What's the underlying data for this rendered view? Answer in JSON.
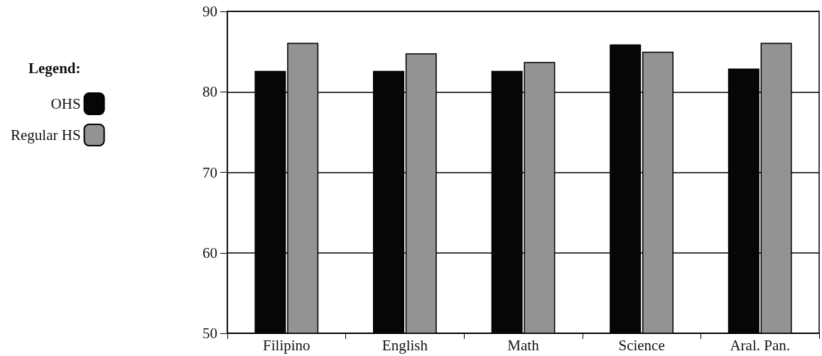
{
  "chart_data": {
    "type": "bar",
    "legend_title": "Legend:",
    "categories": [
      "Filipino",
      "English",
      "Math",
      "Science",
      "Aral. Pan."
    ],
    "series": [
      {
        "name": "OHS",
        "color": "#060606",
        "values": [
          82.6,
          82.6,
          82.6,
          85.9,
          82.9
        ]
      },
      {
        "name": "Regular HS",
        "color": "#939393",
        "values": [
          86.1,
          84.8,
          83.7,
          85.0,
          86.1
        ]
      }
    ],
    "ylim": [
      50,
      90
    ],
    "yticks": [
      50,
      60,
      70,
      80,
      90
    ],
    "grid": "y",
    "legend": "left"
  }
}
